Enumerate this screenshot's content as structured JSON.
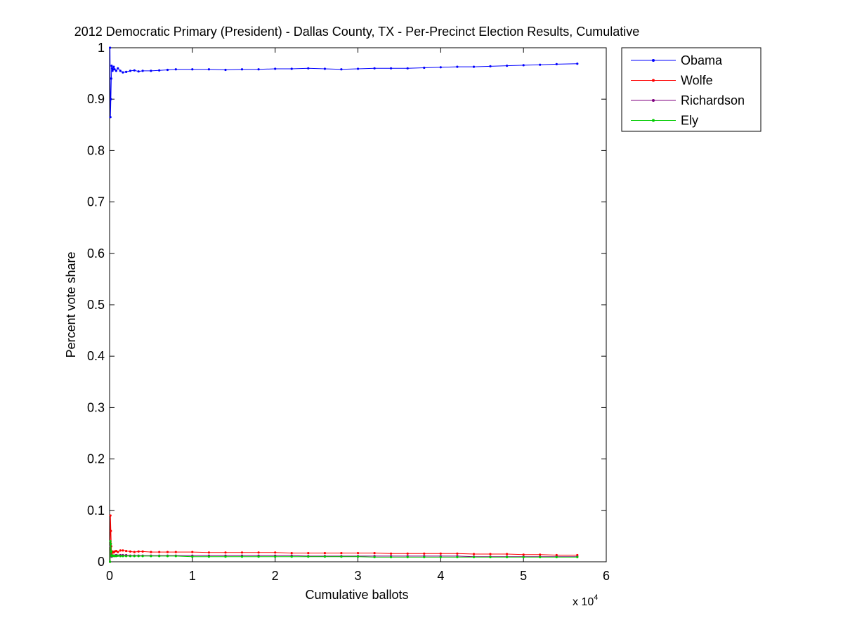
{
  "chart_data": {
    "type": "line",
    "title": "2012 Democratic Primary (President) - Dallas County, TX - Per-Precinct Election Results, Cumulative",
    "xlabel": "Cumulative ballots",
    "ylabel": "Percent vote share",
    "x_multiplier_label": "x 10",
    "x_multiplier_exponent": "4",
    "xlim": [
      0,
      60000
    ],
    "ylim": [
      0,
      1
    ],
    "xticks": [
      0,
      10000,
      20000,
      30000,
      40000,
      50000,
      60000
    ],
    "xtick_labels": [
      "0",
      "1",
      "2",
      "3",
      "4",
      "5",
      "6"
    ],
    "yticks": [
      0,
      0.1,
      0.2,
      0.3,
      0.4,
      0.5,
      0.6,
      0.7,
      0.8,
      0.9,
      1
    ],
    "ytick_labels": [
      "0",
      "0.1",
      "0.2",
      "0.3",
      "0.4",
      "0.5",
      "0.6",
      "0.7",
      "0.8",
      "0.9",
      "1"
    ],
    "grid": false,
    "legend_position": "top-right",
    "series": [
      {
        "name": "Obama",
        "color": "#0000ff",
        "x": [
          50,
          100,
          150,
          200,
          250,
          300,
          350,
          400,
          500,
          600,
          800,
          1000,
          1300,
          1600,
          2000,
          2500,
          3000,
          3500,
          4000,
          5000,
          6000,
          7000,
          8000,
          10000,
          12000,
          14000,
          16000,
          18000,
          20000,
          22000,
          24000,
          26000,
          28000,
          30000,
          32000,
          34000,
          36000,
          38000,
          40000,
          42000,
          44000,
          46000,
          48000,
          50000,
          52000,
          54000,
          56500
        ],
        "y": [
          1.0,
          0.865,
          0.9,
          0.94,
          0.965,
          0.96,
          0.955,
          0.958,
          0.963,
          0.958,
          0.955,
          0.96,
          0.955,
          0.952,
          0.953,
          0.955,
          0.956,
          0.954,
          0.955,
          0.955,
          0.956,
          0.957,
          0.958,
          0.958,
          0.958,
          0.957,
          0.958,
          0.958,
          0.959,
          0.959,
          0.96,
          0.959,
          0.958,
          0.959,
          0.96,
          0.96,
          0.96,
          0.961,
          0.962,
          0.963,
          0.963,
          0.964,
          0.965,
          0.966,
          0.967,
          0.968,
          0.969
        ]
      },
      {
        "name": "Wolfe",
        "color": "#ff0000",
        "x": [
          50,
          100,
          150,
          200,
          250,
          300,
          350,
          400,
          500,
          600,
          800,
          1000,
          1300,
          1600,
          2000,
          2500,
          3000,
          3500,
          4000,
          5000,
          6000,
          7000,
          8000,
          10000,
          12000,
          14000,
          16000,
          18000,
          20000,
          22000,
          24000,
          26000,
          28000,
          30000,
          32000,
          34000,
          36000,
          38000,
          40000,
          42000,
          44000,
          46000,
          48000,
          50000,
          52000,
          54000,
          56500
        ],
        "y": [
          0.0,
          0.09,
          0.06,
          0.03,
          0.015,
          0.018,
          0.02,
          0.019,
          0.018,
          0.02,
          0.021,
          0.019,
          0.022,
          0.022,
          0.021,
          0.02,
          0.019,
          0.02,
          0.02,
          0.019,
          0.019,
          0.019,
          0.019,
          0.019,
          0.018,
          0.018,
          0.018,
          0.018,
          0.018,
          0.017,
          0.017,
          0.017,
          0.017,
          0.017,
          0.017,
          0.016,
          0.016,
          0.016,
          0.016,
          0.016,
          0.015,
          0.015,
          0.015,
          0.014,
          0.014,
          0.013,
          0.013
        ]
      },
      {
        "name": "Richardson",
        "color": "#800080",
        "x": [
          50,
          100,
          150,
          200,
          250,
          300,
          350,
          400,
          500,
          600,
          800,
          1000,
          1300,
          1600,
          2000,
          2500,
          3000,
          3500,
          4000,
          5000,
          6000,
          7000,
          8000,
          10000,
          12000,
          14000,
          16000,
          18000,
          20000,
          22000,
          24000,
          26000,
          28000,
          30000,
          32000,
          34000,
          36000,
          38000,
          40000,
          42000,
          44000,
          46000,
          48000,
          50000,
          52000,
          54000,
          56500
        ],
        "y": [
          0.0,
          0.03,
          0.02,
          0.012,
          0.01,
          0.011,
          0.012,
          0.011,
          0.012,
          0.012,
          0.013,
          0.012,
          0.013,
          0.013,
          0.013,
          0.012,
          0.012,
          0.012,
          0.012,
          0.012,
          0.012,
          0.012,
          0.012,
          0.012,
          0.012,
          0.012,
          0.012,
          0.012,
          0.012,
          0.012,
          0.011,
          0.011,
          0.011,
          0.011,
          0.011,
          0.011,
          0.011,
          0.011,
          0.011,
          0.011,
          0.01,
          0.01,
          0.01,
          0.01,
          0.01,
          0.01,
          0.01
        ]
      },
      {
        "name": "Ely",
        "color": "#00cc00",
        "x": [
          50,
          100,
          150,
          200,
          250,
          300,
          350,
          400,
          500,
          600,
          800,
          1000,
          1300,
          1600,
          2000,
          2500,
          3000,
          3500,
          4000,
          5000,
          6000,
          7000,
          8000,
          10000,
          12000,
          14000,
          16000,
          18000,
          20000,
          22000,
          24000,
          26000,
          28000,
          30000,
          32000,
          34000,
          36000,
          38000,
          40000,
          42000,
          44000,
          46000,
          48000,
          50000,
          52000,
          54000,
          56500
        ],
        "y": [
          0.0,
          0.04,
          0.035,
          0.02,
          0.012,
          0.012,
          0.011,
          0.012,
          0.012,
          0.011,
          0.011,
          0.012,
          0.011,
          0.011,
          0.011,
          0.011,
          0.011,
          0.011,
          0.011,
          0.011,
          0.011,
          0.011,
          0.011,
          0.01,
          0.01,
          0.01,
          0.01,
          0.01,
          0.01,
          0.01,
          0.01,
          0.01,
          0.01,
          0.01,
          0.009,
          0.009,
          0.009,
          0.009,
          0.009,
          0.009,
          0.009,
          0.009,
          0.009,
          0.009,
          0.009,
          0.009,
          0.009
        ]
      }
    ]
  }
}
